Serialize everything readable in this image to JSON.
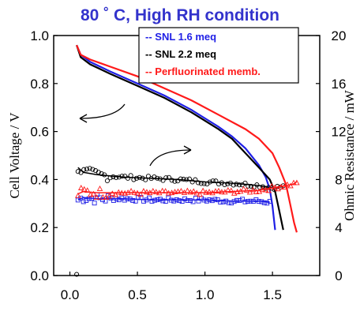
{
  "chart_data": {
    "type": "line",
    "title": "80 ˚ C, High RH condition",
    "title_color": "#3333cc",
    "xlabel": "",
    "ylabel_left": "Cell Voltage / V",
    "ylabel_right": "Ohmic Resistance / mW",
    "xlim": [
      -0.12,
      1.85
    ],
    "ylim_left": [
      0.0,
      1.0
    ],
    "ylim_right": [
      0,
      20
    ],
    "x_ticks": [
      "0.0",
      "0.5",
      "1.0",
      "1.5"
    ],
    "y_left_ticks": [
      "0.0",
      "0.2",
      "0.4",
      "0.6",
      "0.8",
      "1.0"
    ],
    "y_right_ticks": [
      "0",
      "4",
      "8",
      "12",
      "16",
      "20"
    ],
    "grid": false,
    "legend_position": "top-center",
    "series": [
      {
        "name": "-- SNL 1.6 meq",
        "color": "#1f1fe6",
        "axis": "left",
        "voltage": [
          [
            0.05,
            0.96
          ],
          [
            0.08,
            0.92
          ],
          [
            0.15,
            0.89
          ],
          [
            0.3,
            0.85
          ],
          [
            0.5,
            0.8
          ],
          [
            0.7,
            0.75
          ],
          [
            0.9,
            0.69
          ],
          [
            1.1,
            0.62
          ],
          [
            1.2,
            0.58
          ],
          [
            1.3,
            0.53
          ],
          [
            1.4,
            0.46
          ],
          [
            1.45,
            0.41
          ],
          [
            1.48,
            0.36
          ],
          [
            1.5,
            0.29
          ],
          [
            1.52,
            0.19
          ]
        ],
        "resistance": [
          [
            0.06,
            6.3
          ],
          [
            0.1,
            6.5
          ],
          [
            0.2,
            6.4
          ],
          [
            0.4,
            6.4
          ],
          [
            0.6,
            6.3
          ],
          [
            0.8,
            6.3
          ],
          [
            1.0,
            6.3
          ],
          [
            1.2,
            6.2
          ],
          [
            1.4,
            6.2
          ],
          [
            1.48,
            6.1
          ]
        ]
      },
      {
        "name": "-- SNL 2.2 meq",
        "color": "#000000",
        "axis": "left",
        "voltage": [
          [
            0.05,
            0.96
          ],
          [
            0.08,
            0.91
          ],
          [
            0.15,
            0.88
          ],
          [
            0.3,
            0.84
          ],
          [
            0.5,
            0.79
          ],
          [
            0.7,
            0.74
          ],
          [
            0.9,
            0.68
          ],
          [
            1.1,
            0.61
          ],
          [
            1.2,
            0.57
          ],
          [
            1.3,
            0.51
          ],
          [
            1.4,
            0.45
          ],
          [
            1.48,
            0.4
          ],
          [
            1.52,
            0.35
          ],
          [
            1.55,
            0.27
          ],
          [
            1.58,
            0.19
          ]
        ],
        "resistance": [
          [
            0.06,
            9.0
          ],
          [
            0.1,
            8.6
          ],
          [
            0.2,
            8.4
          ],
          [
            0.4,
            8.2
          ],
          [
            0.6,
            8.1
          ],
          [
            0.8,
            8.0
          ],
          [
            1.0,
            7.8
          ],
          [
            1.2,
            7.7
          ],
          [
            1.4,
            7.5
          ],
          [
            1.5,
            7.3
          ],
          [
            1.58,
            7.4
          ]
        ]
      },
      {
        "name": "-- Perfluorinated memb.",
        "color": "#ff1a1a",
        "axis": "left",
        "voltage": [
          [
            0.05,
            0.96
          ],
          [
            0.08,
            0.92
          ],
          [
            0.15,
            0.9
          ],
          [
            0.3,
            0.87
          ],
          [
            0.5,
            0.83
          ],
          [
            0.7,
            0.78
          ],
          [
            0.9,
            0.73
          ],
          [
            1.1,
            0.67
          ],
          [
            1.3,
            0.61
          ],
          [
            1.4,
            0.57
          ],
          [
            1.5,
            0.51
          ],
          [
            1.55,
            0.45
          ],
          [
            1.6,
            0.38
          ],
          [
            1.63,
            0.3
          ],
          [
            1.66,
            0.22
          ],
          [
            1.68,
            0.18
          ]
        ],
        "resistance": [
          [
            0.06,
            6.8
          ],
          [
            0.1,
            7.0
          ],
          [
            0.2,
            6.9
          ],
          [
            0.4,
            6.9
          ],
          [
            0.6,
            6.9
          ],
          [
            0.8,
            6.9
          ],
          [
            1.0,
            6.9
          ],
          [
            1.2,
            7.0
          ],
          [
            1.4,
            7.1
          ],
          [
            1.55,
            7.4
          ],
          [
            1.65,
            7.6
          ],
          [
            1.68,
            7.8
          ]
        ]
      }
    ]
  }
}
